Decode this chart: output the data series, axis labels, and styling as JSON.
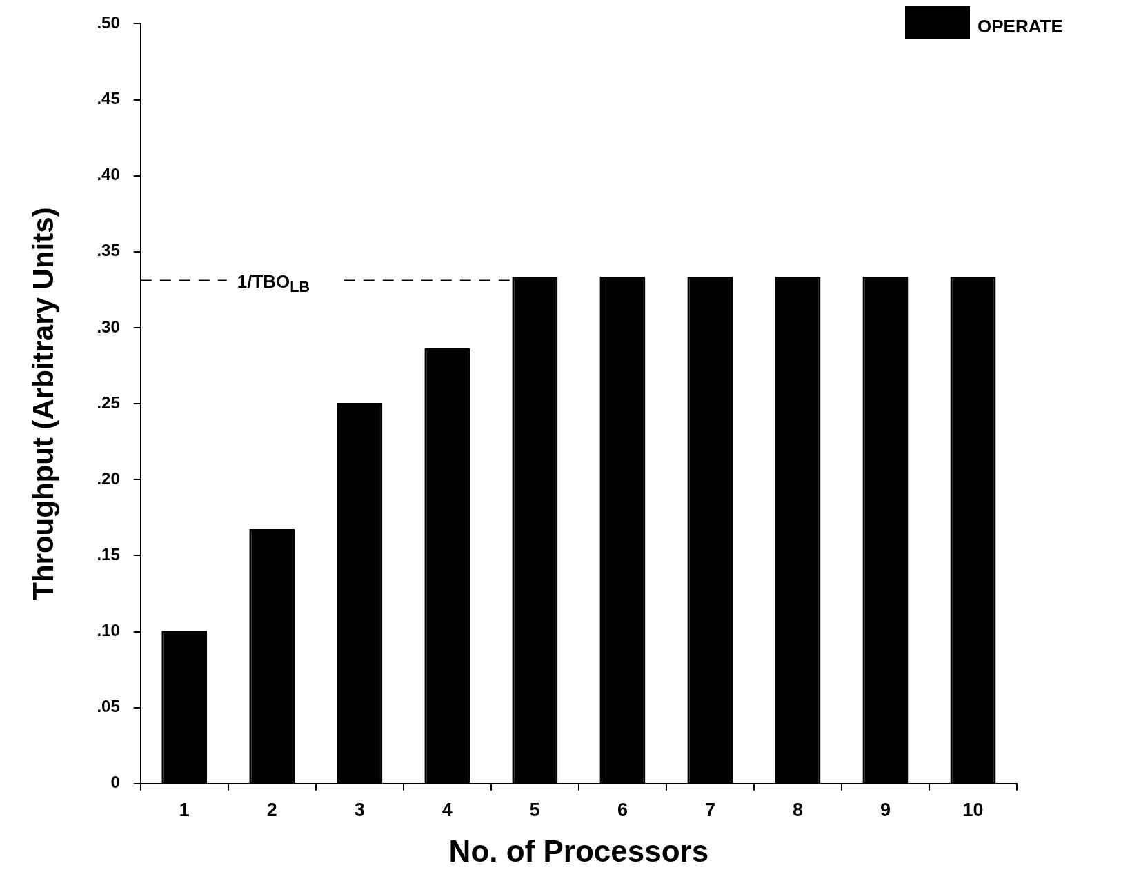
{
  "chart_data": {
    "type": "bar",
    "xlabel": "No. of Processors",
    "ylabel": "Throughput (Arbitrary Units)",
    "categories": [
      "1",
      "2",
      "3",
      "4",
      "5",
      "6",
      "7",
      "8",
      "9",
      "10"
    ],
    "series": [
      {
        "name": "OPERATE",
        "color": "#000000",
        "values": [
          0.1,
          0.167,
          0.25,
          0.286,
          0.333,
          0.333,
          0.333,
          0.333,
          0.333,
          0.333
        ]
      }
    ],
    "ylim": [
      0,
      0.5
    ],
    "yticks": [
      {
        "value": 0,
        "label": "0"
      },
      {
        "value": 0.05,
        "label": ".05"
      },
      {
        "value": 0.1,
        "label": ".10"
      },
      {
        "value": 0.15,
        "label": ".15"
      },
      {
        "value": 0.2,
        "label": ".20"
      },
      {
        "value": 0.25,
        "label": ".25"
      },
      {
        "value": 0.3,
        "label": ".30"
      },
      {
        "value": 0.35,
        "label": ".35"
      },
      {
        "value": 0.4,
        "label": ".40"
      },
      {
        "value": 0.45,
        "label": ".45"
      },
      {
        "value": 0.5,
        "label": ".50"
      }
    ],
    "ref_lines": [
      {
        "axis": "y",
        "value": 0.331,
        "label": "1/TBO$_{LB}$",
        "line_style": "dashed"
      }
    ],
    "legend": "top right",
    "grid": false
  }
}
